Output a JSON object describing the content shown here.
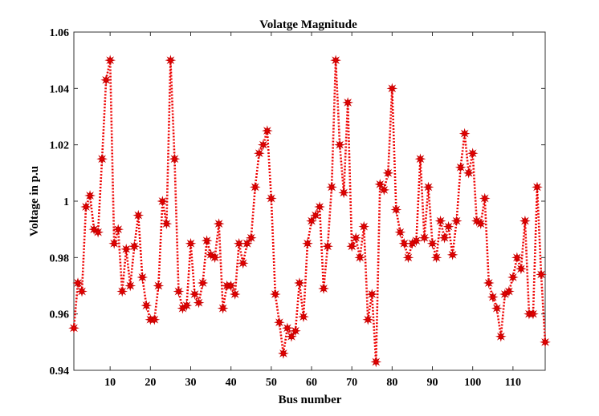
{
  "chart_data": {
    "type": "line",
    "title": "Volatge Magnitude",
    "xlabel": "Bus number",
    "ylabel": "Voltage in p.u",
    "xlim": [
      1,
      118
    ],
    "ylim": [
      0.94,
      1.06
    ],
    "xticks": [
      10,
      20,
      30,
      40,
      50,
      60,
      70,
      80,
      90,
      100,
      110
    ],
    "yticks": [
      0.94,
      0.96,
      0.98,
      1,
      1.02,
      1.04,
      1.06
    ],
    "ytick_labels": [
      "0.94",
      "0.96",
      "0.98",
      "1",
      "1.02",
      "1.04",
      "1.06"
    ],
    "grid": false,
    "legend": "none",
    "color": "#ee0000",
    "x": [
      1,
      2,
      3,
      4,
      5,
      6,
      7,
      8,
      9,
      10,
      11,
      12,
      13,
      14,
      15,
      16,
      17,
      18,
      19,
      20,
      21,
      22,
      23,
      24,
      25,
      26,
      27,
      28,
      29,
      30,
      31,
      32,
      33,
      34,
      35,
      36,
      37,
      38,
      39,
      40,
      41,
      42,
      43,
      44,
      45,
      46,
      47,
      48,
      49,
      50,
      51,
      52,
      53,
      54,
      55,
      56,
      57,
      58,
      59,
      60,
      61,
      62,
      63,
      64,
      65,
      66,
      67,
      68,
      69,
      70,
      71,
      72,
      73,
      74,
      75,
      76,
      77,
      78,
      79,
      80,
      81,
      82,
      83,
      84,
      85,
      86,
      87,
      88,
      89,
      90,
      91,
      92,
      93,
      94,
      95,
      96,
      97,
      98,
      99,
      100,
      101,
      102,
      103,
      104,
      105,
      106,
      107,
      108,
      109,
      110,
      111,
      112,
      113,
      114,
      115,
      116,
      117,
      118
    ],
    "y": [
      0.955,
      0.971,
      0.968,
      0.998,
      1.002,
      0.99,
      0.989,
      1.015,
      1.043,
      1.05,
      0.985,
      0.99,
      0.968,
      0.983,
      0.97,
      0.984,
      0.995,
      0.973,
      0.963,
      0.958,
      0.958,
      0.97,
      1.0,
      0.992,
      1.05,
      1.015,
      0.968,
      0.962,
      0.963,
      0.985,
      0.967,
      0.964,
      0.971,
      0.986,
      0.981,
      0.98,
      0.992,
      0.962,
      0.97,
      0.97,
      0.967,
      0.985,
      0.978,
      0.985,
      0.987,
      1.005,
      1.017,
      1.02,
      1.025,
      1.001,
      0.967,
      0.957,
      0.946,
      0.955,
      0.952,
      0.954,
      0.971,
      0.959,
      0.985,
      0.993,
      0.995,
      0.998,
      0.969,
      0.984,
      1.005,
      1.05,
      1.02,
      1.003,
      1.035,
      0.984,
      0.987,
      0.98,
      0.991,
      0.958,
      0.967,
      0.943,
      1.006,
      1.004,
      1.01,
      1.04,
      0.997,
      0.989,
      0.985,
      0.98,
      0.985,
      0.986,
      1.015,
      0.987,
      1.005,
      0.985,
      0.98,
      0.993,
      0.987,
      0.991,
      0.981,
      0.993,
      1.012,
      1.024,
      1.01,
      1.017,
      0.993,
      0.992,
      1.001,
      0.971,
      0.966,
      0.962,
      0.952,
      0.967,
      0.968,
      0.973,
      0.98,
      0.976,
      0.993,
      0.96,
      0.96,
      1.005,
      0.974,
      0.95
    ]
  }
}
